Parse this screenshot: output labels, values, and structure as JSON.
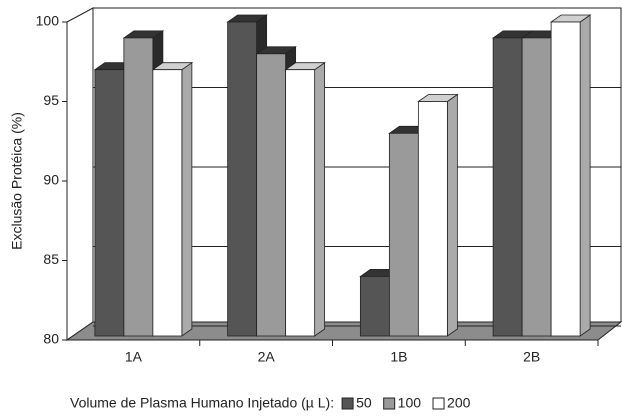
{
  "chart_data": {
    "type": "bar3d",
    "y_label": "Exclusão Protéica (%)",
    "x_label": "Volume de Plasma Humano Injetado (µ L):",
    "categories": [
      "1A",
      "2A",
      "1B",
      "2B"
    ],
    "series": [
      {
        "name": "50",
        "color": "#555555",
        "values": [
          97,
          100,
          84,
          99
        ]
      },
      {
        "name": "100",
        "color": "#9a9a9a",
        "values": [
          99,
          98,
          93,
          99
        ]
      },
      {
        "name": "200",
        "color": "#ffffff",
        "values": [
          97,
          97,
          95,
          100
        ]
      }
    ],
    "ylim": [
      80,
      100
    ],
    "yticks": [
      80,
      85,
      90,
      95,
      100
    ],
    "grid": true
  }
}
